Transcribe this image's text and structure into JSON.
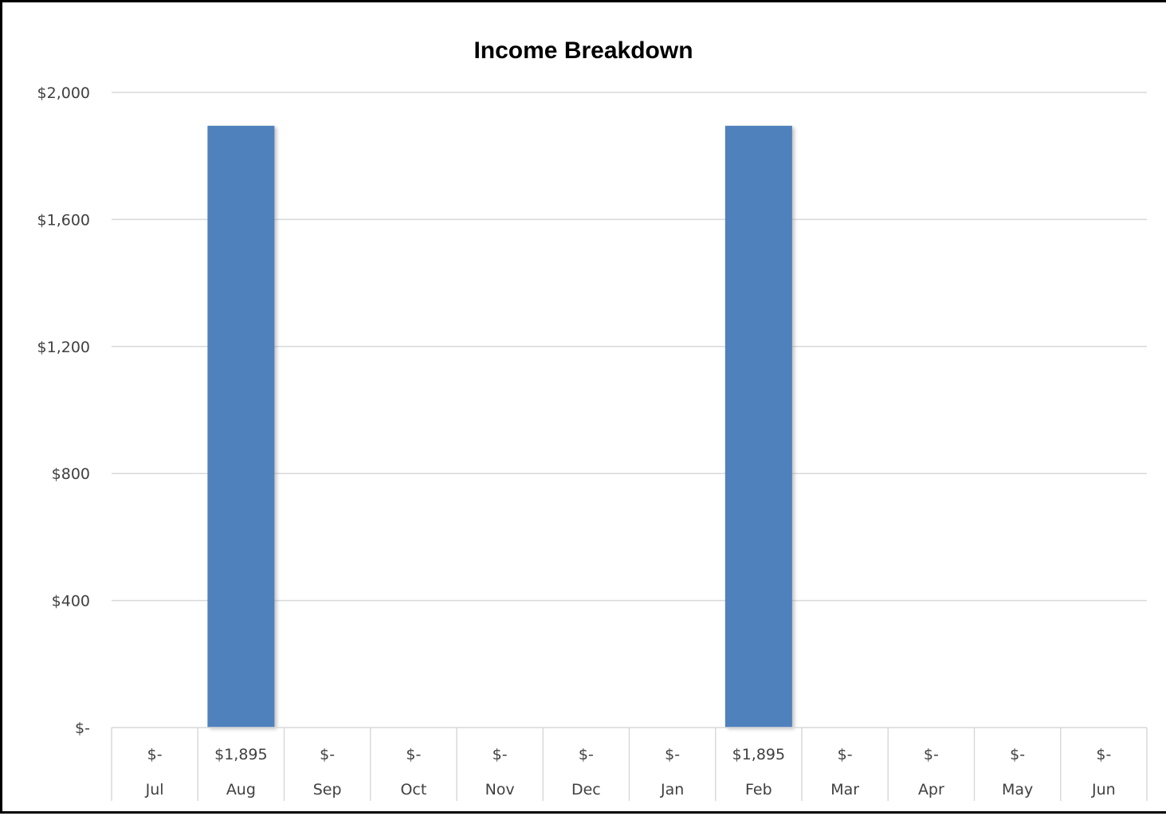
{
  "chart_data": {
    "type": "bar",
    "title": "Income Breakdown",
    "xlabel": "",
    "ylabel": "",
    "categories": [
      "Jul",
      "Aug",
      "Sep",
      "Oct",
      "Nov",
      "Dec",
      "Jan",
      "Feb",
      "Mar",
      "Apr",
      "May",
      "Jun"
    ],
    "values": [
      0,
      1895,
      0,
      0,
      0,
      0,
      0,
      1895,
      0,
      0,
      0,
      0
    ],
    "value_labels": [
      "$-",
      "$1,895",
      "$-",
      "$-",
      "$-",
      "$-",
      "$-",
      "$1,895",
      "$-",
      "$-",
      "$-",
      "$-"
    ],
    "ylim": [
      0,
      2000
    ],
    "y_ticks": [
      0,
      400,
      800,
      1200,
      1600,
      2000
    ],
    "y_tick_labels": [
      "$-",
      "$400",
      "$800",
      "$1,200",
      "$1,600",
      "$2,000"
    ],
    "grid": true,
    "legend": "none",
    "data_table": true,
    "bar_color": "#4f81bd",
    "gridline_color": "#d9d9d9"
  }
}
